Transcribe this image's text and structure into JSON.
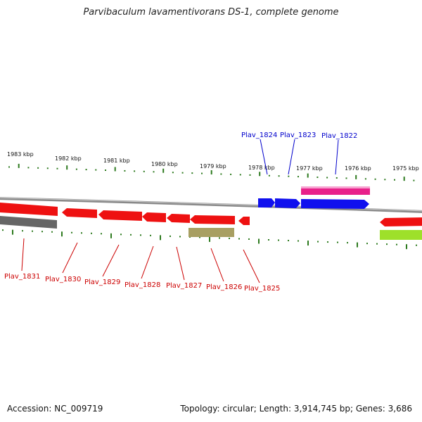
{
  "title": "Parvibaculum lavamentivorans DS-1, complete genome",
  "footer": {
    "accession": "Accession: NC_009719",
    "summary": "Topology: circular; Length: 3,914,745 bp; Genes: 3,686"
  },
  "scale_labels": [
    "1983 kbp",
    "1982 kbp",
    "1981 kbp",
    "1980 kbp",
    "1979 kbp",
    "1978 kbp",
    "1977 kbp",
    "1976 kbp",
    "1975 kbp"
  ],
  "colors": {
    "forward_label": "#0000cc",
    "reverse_label": "#cc0000",
    "tick": "#2d7a1e",
    "backbone": "#8a8a8a",
    "red_gene": "#ee1111",
    "blue_gene": "#1010ee",
    "magenta_feature": "#e8208a",
    "gray_feature": "#666666",
    "olive_feature": "#a89f62",
    "lime_feature": "#9ee02a"
  },
  "genes_forward": [
    {
      "label": "Plav_1824"
    },
    {
      "label": "Plav_1823"
    },
    {
      "label": "Plav_1822"
    }
  ],
  "genes_reverse": [
    {
      "label": "Plav_1831"
    },
    {
      "label": "Plav_1830"
    },
    {
      "label": "Plav_1829"
    },
    {
      "label": "Plav_1828"
    },
    {
      "label": "Plav_1827"
    },
    {
      "label": "Plav_1826"
    },
    {
      "label": "Plav_1825"
    }
  ]
}
